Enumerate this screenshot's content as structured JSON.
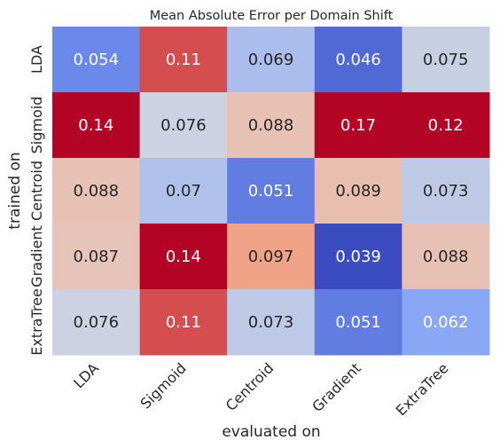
{
  "chart_data": {
    "type": "heatmap",
    "title": "Mean Absolute Error per Domain Shift",
    "xlabel": "evaluated on",
    "ylabel": "trained on",
    "x_categories": [
      "LDA",
      "Sigmoid",
      "Centroid",
      "Gradient",
      "ExtraTree"
    ],
    "y_categories": [
      "LDA",
      "Sigmoid",
      "Centroid",
      "Gradient",
      "ExtraTree"
    ],
    "values": [
      [
        0.054,
        0.11,
        0.069,
        0.046,
        0.075
      ],
      [
        0.14,
        0.076,
        0.088,
        0.17,
        0.12
      ],
      [
        0.088,
        0.07,
        0.051,
        0.089,
        0.073
      ],
      [
        0.087,
        0.14,
        0.097,
        0.039,
        0.088
      ],
      [
        0.076,
        0.11,
        0.073,
        0.051,
        0.062
      ]
    ],
    "labels": [
      [
        "0.054",
        "0.11",
        "0.069",
        "0.046",
        "0.075"
      ],
      [
        "0.14",
        "0.076",
        "0.088",
        "0.17",
        "0.12"
      ],
      [
        "0.088",
        "0.07",
        "0.051",
        "0.089",
        "0.073"
      ],
      [
        "0.087",
        "0.14",
        "0.097",
        "0.039",
        "0.088"
      ],
      [
        "0.076",
        "0.11",
        "0.073",
        "0.051",
        "0.062"
      ]
    ],
    "colormap": "coolwarm",
    "vmin": 0.039,
    "vmax": 0.12,
    "colorbar": false
  }
}
